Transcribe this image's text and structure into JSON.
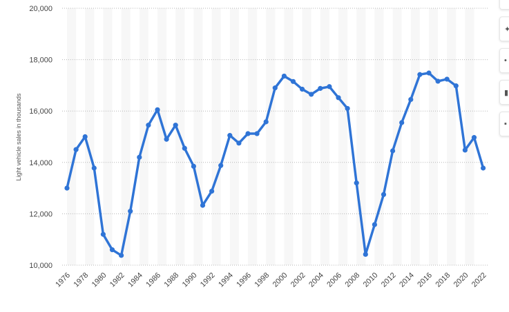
{
  "chart_data": {
    "type": "line",
    "ylabel": "Light vehicle sales in thousands",
    "xlabel": "",
    "title": "",
    "ylim": [
      10000,
      20000
    ],
    "yticks": [
      "10,000",
      "12,000",
      "14,000",
      "16,000",
      "18,000",
      "20,000"
    ],
    "ytick_values": [
      10000,
      12000,
      14000,
      16000,
      18000,
      20000
    ],
    "xticks": [
      "1976",
      "1978",
      "1980",
      "1982",
      "1984",
      "1986",
      "1988",
      "1990",
      "1992",
      "1994",
      "1996",
      "1998",
      "2000",
      "2002",
      "2004",
      "2006",
      "2008",
      "2010",
      "2012",
      "2014",
      "2016",
      "2018",
      "2020",
      "2022"
    ],
    "grid": true,
    "line_color": "#2f74d6",
    "x": [
      1976,
      1977,
      1978,
      1979,
      1980,
      1981,
      1982,
      1983,
      1984,
      1985,
      1986,
      1987,
      1988,
      1989,
      1990,
      1991,
      1992,
      1993,
      1994,
      1995,
      1996,
      1997,
      1998,
      1999,
      2000,
      2001,
      2002,
      2003,
      2004,
      2005,
      2006,
      2007,
      2008,
      2009,
      2010,
      2011,
      2012,
      2013,
      2014,
      2015,
      2016,
      2017,
      2018,
      2019,
      2020,
      2021,
      2022
    ],
    "values": [
      13000,
      14500,
      15000,
      13780,
      11200,
      10600,
      10380,
      12100,
      14200,
      15450,
      16050,
      14900,
      15450,
      14550,
      13850,
      12330,
      12880,
      13880,
      15050,
      14750,
      15120,
      15120,
      15580,
      16900,
      17360,
      17150,
      16850,
      16650,
      16880,
      16950,
      16520,
      16100,
      13200,
      10420,
      11580,
      12750,
      14450,
      15550,
      16450,
      17420,
      17480,
      17160,
      17240,
      16980,
      14480,
      14970,
      13780
    ]
  },
  "side_buttons": [
    {
      "icon": "bell-icon",
      "glyph": "•"
    },
    {
      "icon": "star-icon",
      "glyph": "✦"
    },
    {
      "icon": "settings-icon",
      "glyph": "•"
    },
    {
      "icon": "share-icon",
      "glyph": "▮"
    },
    {
      "icon": "quote-icon",
      "glyph": "▪"
    }
  ]
}
